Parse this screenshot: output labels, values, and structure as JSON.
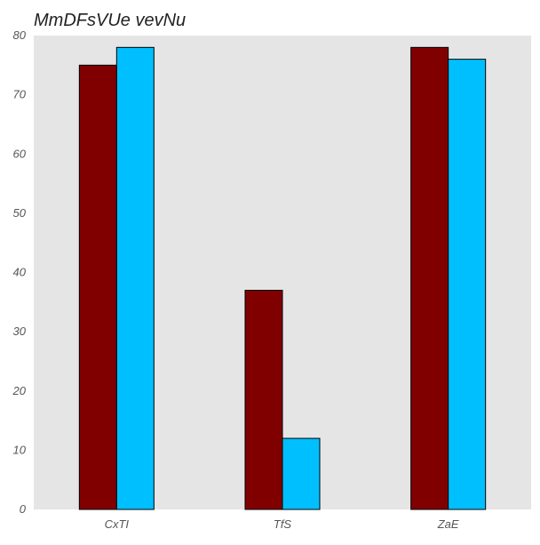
{
  "chart_data": {
    "type": "bar",
    "title": "MmDFsVUe vevNu",
    "categories": [
      "CxTI",
      "TfS",
      "ZaE"
    ],
    "series": [
      {
        "values": [
          75,
          37,
          78
        ],
        "color": "#800000"
      },
      {
        "values": [
          78,
          12,
          76
        ],
        "color": "#00BFFF"
      }
    ],
    "xlabel": "",
    "ylabel": "",
    "ylim": [
      0,
      80
    ],
    "yticks": [
      0,
      10,
      20,
      30,
      40,
      50,
      60,
      70,
      80
    ],
    "grid": false,
    "legend": "none",
    "plot_background": "#E5E5E5"
  }
}
